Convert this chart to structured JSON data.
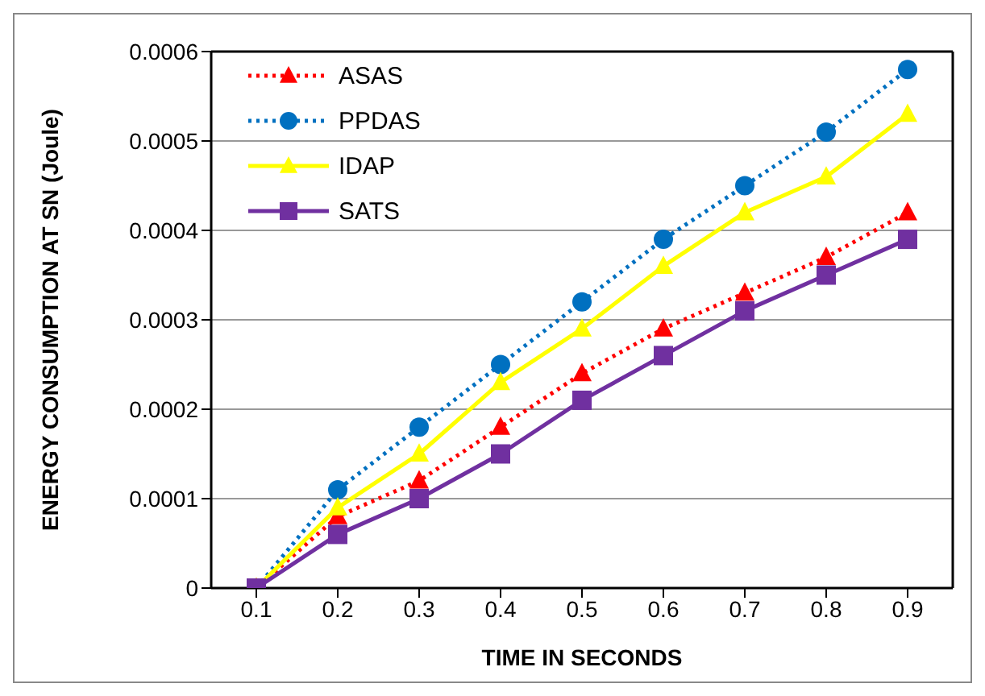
{
  "chart_data": {
    "type": "line",
    "xlabel": "TIME IN SECONDS",
    "ylabel": "ENERGY CONSUMPTION AT SN (Joule)",
    "categories": [
      "0.1",
      "0.2",
      "0.3",
      "0.4",
      "0.5",
      "0.6",
      "0.7",
      "0.8",
      "0.9"
    ],
    "series": [
      {
        "name": "ASAS",
        "color": "#ff0000",
        "marker": "triangle",
        "line_style": "dotted",
        "values": [
          0,
          8e-05,
          0.00012,
          0.00018,
          0.00024,
          0.00029,
          0.00033,
          0.00037,
          0.00042
        ]
      },
      {
        "name": "PPDAS",
        "color": "#0070c0",
        "marker": "circle",
        "line_style": "dotted",
        "values": [
          0,
          0.00011,
          0.00018,
          0.00025,
          0.00032,
          0.00039,
          0.00045,
          0.00051,
          0.00058
        ]
      },
      {
        "name": "IDAP",
        "color": "#ffff00",
        "marker": "triangle",
        "line_style": "solid",
        "values": [
          0,
          9e-05,
          0.00015,
          0.00023,
          0.00029,
          0.00036,
          0.00042,
          0.00046,
          0.00053
        ]
      },
      {
        "name": "SATS",
        "color": "#7030a0",
        "marker": "square",
        "line_style": "solid",
        "values": [
          0,
          6e-05,
          0.0001,
          0.00015,
          0.00021,
          0.00026,
          0.00031,
          0.00035,
          0.00039
        ]
      }
    ],
    "ylim": [
      0,
      0.0006
    ],
    "yticks": [
      0,
      0.0001,
      0.0002,
      0.0003,
      0.0004,
      0.0005,
      0.0006
    ],
    "grid": "y",
    "legend": "top left"
  }
}
